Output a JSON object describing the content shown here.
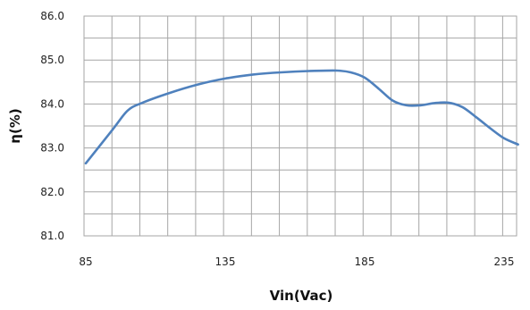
{
  "chart_data": {
    "type": "line",
    "title": "",
    "xlabel": "Vin(Vac)",
    "ylabel": "η(%)",
    "xlim": [
      85,
      240
    ],
    "ylim": [
      81.0,
      86.0
    ],
    "x_ticks": [
      85,
      135,
      185,
      235
    ],
    "x_tick_labels": [
      "85",
      "135",
      "185",
      "235"
    ],
    "y_ticks": [
      81.0,
      82.0,
      83.0,
      84.0,
      85.0,
      86.0
    ],
    "y_tick_labels": [
      "81.0",
      "82.0",
      "83.0",
      "84.0",
      "85.0",
      "86.0"
    ],
    "grid": true,
    "legend": "none",
    "line_color": "#4F81BD",
    "grid_color": "#A6A6A6",
    "series": [
      {
        "x": [
          85,
          95,
          100,
          105,
          115,
          125,
          135,
          145,
          155,
          165,
          175,
          180,
          185,
          190,
          195,
          200,
          205,
          210,
          215,
          220,
          225,
          230,
          235,
          240
        ],
        "values": [
          82.65,
          83.45,
          83.85,
          84.02,
          84.25,
          84.44,
          84.58,
          84.67,
          84.72,
          84.75,
          84.76,
          84.72,
          84.6,
          84.35,
          84.08,
          83.97,
          83.97,
          84.02,
          84.03,
          83.93,
          83.7,
          83.45,
          83.22,
          83.08
        ]
      }
    ]
  }
}
